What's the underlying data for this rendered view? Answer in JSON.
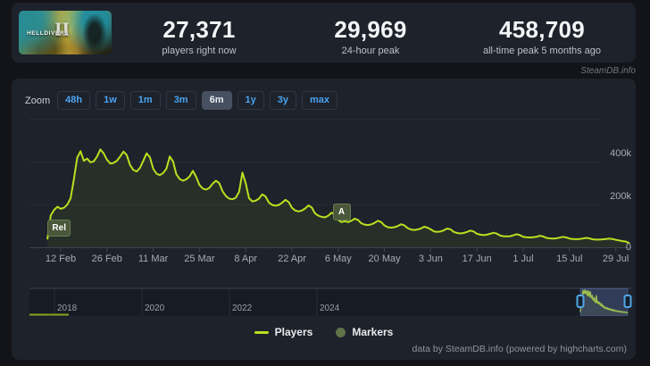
{
  "header": {
    "game": {
      "title": "HELLDIVERS",
      "numeral": "II"
    },
    "stats": [
      {
        "value": "27,371",
        "label": "players right now"
      },
      {
        "value": "29,969",
        "label": "24-hour peak"
      },
      {
        "value": "458,709",
        "label": "all-time peak 5 months ago"
      }
    ]
  },
  "watermark": "SteamDB.info",
  "toolbar": {
    "zoom_label": "Zoom",
    "ranges": [
      "48h",
      "1w",
      "1m",
      "3m",
      "6m",
      "1y",
      "3y",
      "max"
    ],
    "selected": "6m"
  },
  "legend": [
    {
      "name": "Players",
      "symbol": "line",
      "color": "#b9e11f"
    },
    {
      "name": "Markers",
      "symbol": "circle",
      "color": "#5f7248"
    }
  ],
  "credits": "data by SteamDB.info (powered by highcharts.com)",
  "chart_data": {
    "type": "area",
    "title": "",
    "xlabel": "",
    "ylabel": "",
    "grid": true,
    "legend_position": "bottom-center",
    "ylim": [
      0,
      600000
    ],
    "y_ticks": [
      {
        "label": "0",
        "value": 0
      },
      {
        "label": "200k",
        "value": 200000
      },
      {
        "label": "400k",
        "value": 400000
      }
    ],
    "x_ticks": [
      "12 Feb",
      "26 Feb",
      "11 Mar",
      "25 Mar",
      "8 Apr",
      "22 Apr",
      "6 May",
      "20 May",
      "3 Jun",
      "17 Jun",
      "1 Jul",
      "15 Jul",
      "29 Jul"
    ],
    "series": [
      {
        "name": "Players",
        "color": "#b9e11f",
        "start_date": "8 Feb 2024",
        "interval_days": 1,
        "values": [
          40000,
          150000,
          175000,
          190000,
          180000,
          185000,
          200000,
          230000,
          320000,
          420000,
          450000,
          405000,
          415000,
          398000,
          402000,
          425000,
          458000,
          440000,
          410000,
          392000,
          395000,
          405000,
          425000,
          448000,
          432000,
          385000,
          362000,
          355000,
          372000,
          405000,
          440000,
          422000,
          368000,
          345000,
          338000,
          348000,
          368000,
          425000,
          402000,
          342000,
          320000,
          312000,
          318000,
          332000,
          358000,
          330000,
          292000,
          275000,
          270000,
          278000,
          298000,
          312000,
          300000,
          262000,
          240000,
          228000,
          225000,
          232000,
          260000,
          350000,
          300000,
          230000,
          215000,
          218000,
          228000,
          248000,
          238000,
          210000,
          198000,
          195000,
          198000,
          208000,
          222000,
          212000,
          185000,
          172000,
          168000,
          172000,
          182000,
          196000,
          186000,
          158000,
          148000,
          142000,
          140000,
          148000,
          162000,
          152000,
          128000,
          118000,
          122000,
          118000,
          124000,
          134000,
          128000,
          112000,
          106000,
          104000,
          107000,
          114000,
          124000,
          118000,
          102000,
          94000,
          92000,
          94000,
          99000,
          108000,
          103000,
          90000,
          83000,
          81000,
          83000,
          88000,
          96000,
          92000,
          84000,
          74000,
          72000,
          74000,
          80000,
          88000,
          84000,
          72000,
          67000,
          65000,
          67000,
          72000,
          78000,
          74000,
          63000,
          59000,
          57000,
          59000,
          63000,
          68000,
          64000,
          55000,
          52000,
          51000,
          52000,
          56000,
          61000,
          57000,
          49000,
          47000,
          46000,
          47000,
          49000,
          54000,
          51000,
          44000,
          42000,
          41000,
          42000,
          45000,
          49000,
          46000,
          41000,
          39000,
          38000,
          39000,
          41000,
          44000,
          42000,
          37000,
          36000,
          36000,
          37000,
          39000,
          41000,
          39000,
          35000,
          32000,
          29000,
          27000,
          20000
        ]
      }
    ],
    "markers": [
      {
        "label": "Rel",
        "day_index": 0
      },
      {
        "label": "A",
        "day_index": 89
      }
    ],
    "navigator": {
      "year_ticks": [
        "2018",
        "2020",
        "2022",
        "2024"
      ],
      "selected_range": "Feb 2024 - Aug 2024"
    }
  }
}
